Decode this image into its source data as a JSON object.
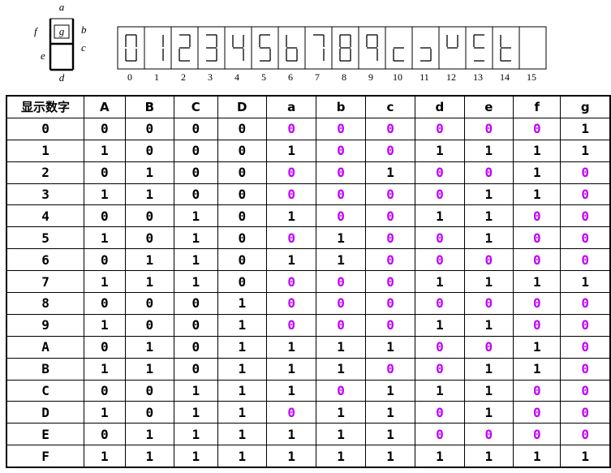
{
  "segment_diagram": {
    "a": "a",
    "b": "b",
    "c": "c",
    "d": "d",
    "e": "e",
    "f": "f",
    "g": "g"
  },
  "display": {
    "indices": [
      "0",
      "1",
      "2",
      "3",
      "4",
      "5",
      "6",
      "7",
      "8",
      "9",
      "10",
      "11",
      "12",
      "13",
      "14",
      "15"
    ]
  },
  "table": {
    "header": [
      "显示数字",
      "A",
      "B",
      "C",
      "D",
      "a",
      "b",
      "c",
      "d",
      "e",
      "f",
      "g"
    ],
    "rows": [
      [
        "0",
        0,
        0,
        0,
        0,
        0,
        0,
        0,
        0,
        0,
        0,
        1
      ],
      [
        "1",
        1,
        0,
        0,
        0,
        1,
        0,
        0,
        1,
        1,
        1,
        1
      ],
      [
        "2",
        0,
        1,
        0,
        0,
        0,
        0,
        1,
        0,
        0,
        1,
        0
      ],
      [
        "3",
        1,
        1,
        0,
        0,
        0,
        0,
        0,
        0,
        1,
        1,
        0
      ],
      [
        "4",
        0,
        0,
        1,
        0,
        1,
        0,
        0,
        1,
        1,
        0,
        0
      ],
      [
        "5",
        1,
        0,
        1,
        0,
        0,
        1,
        0,
        0,
        1,
        0,
        0
      ],
      [
        "6",
        0,
        1,
        1,
        0,
        1,
        1,
        0,
        0,
        0,
        0,
        0
      ],
      [
        "7",
        1,
        1,
        1,
        0,
        0,
        0,
        0,
        1,
        1,
        1,
        1
      ],
      [
        "8",
        0,
        0,
        0,
        1,
        0,
        0,
        0,
        0,
        0,
        0,
        0
      ],
      [
        "9",
        1,
        0,
        0,
        1,
        0,
        0,
        0,
        1,
        1,
        0,
        0
      ],
      [
        "A",
        0,
        1,
        0,
        1,
        1,
        1,
        1,
        0,
        0,
        1,
        0
      ],
      [
        "B",
        1,
        1,
        0,
        1,
        1,
        1,
        0,
        0,
        1,
        1,
        0
      ],
      [
        "C",
        0,
        0,
        1,
        1,
        1,
        0,
        1,
        1,
        1,
        0,
        0
      ],
      [
        "D",
        1,
        0,
        1,
        1,
        0,
        1,
        1,
        0,
        1,
        0,
        0
      ],
      [
        "E",
        0,
        1,
        1,
        1,
        1,
        1,
        1,
        0,
        0,
        0,
        0
      ],
      [
        "F",
        1,
        1,
        1,
        1,
        1,
        1,
        1,
        1,
        1,
        1,
        1
      ]
    ]
  }
}
